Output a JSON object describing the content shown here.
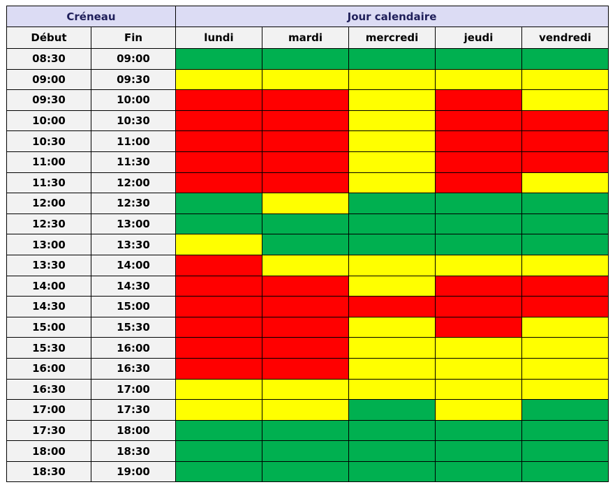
{
  "chart_data": {
    "type": "heatmap",
    "group_headers": {
      "slot": "Créneau",
      "days": "Jour calendaire"
    },
    "slot_headers": {
      "start": "Début",
      "end": "Fin"
    },
    "days": [
      "lundi",
      "mardi",
      "mercredi",
      "jeudi",
      "vendredi"
    ],
    "colors": {
      "G": "#00b050",
      "Y": "#ffff00",
      "R": "#ff0000"
    },
    "rows": [
      {
        "start": "08:30",
        "end": "09:00",
        "cells": [
          "G",
          "G",
          "G",
          "G",
          "G"
        ]
      },
      {
        "start": "09:00",
        "end": "09:30",
        "cells": [
          "Y",
          "Y",
          "Y",
          "Y",
          "Y"
        ]
      },
      {
        "start": "09:30",
        "end": "10:00",
        "cells": [
          "R",
          "R",
          "Y",
          "R",
          "Y"
        ]
      },
      {
        "start": "10:00",
        "end": "10:30",
        "cells": [
          "R",
          "R",
          "Y",
          "R",
          "R"
        ]
      },
      {
        "start": "10:30",
        "end": "11:00",
        "cells": [
          "R",
          "R",
          "Y",
          "R",
          "R"
        ]
      },
      {
        "start": "11:00",
        "end": "11:30",
        "cells": [
          "R",
          "R",
          "Y",
          "R",
          "R"
        ]
      },
      {
        "start": "11:30",
        "end": "12:00",
        "cells": [
          "R",
          "R",
          "Y",
          "R",
          "Y"
        ]
      },
      {
        "start": "12:00",
        "end": "12:30",
        "cells": [
          "G",
          "Y",
          "G",
          "G",
          "G"
        ]
      },
      {
        "start": "12:30",
        "end": "13:00",
        "cells": [
          "G",
          "G",
          "G",
          "G",
          "G"
        ]
      },
      {
        "start": "13:00",
        "end": "13:30",
        "cells": [
          "Y",
          "G",
          "G",
          "G",
          "G"
        ]
      },
      {
        "start": "13:30",
        "end": "14:00",
        "cells": [
          "R",
          "Y",
          "Y",
          "Y",
          "Y"
        ]
      },
      {
        "start": "14:00",
        "end": "14:30",
        "cells": [
          "R",
          "R",
          "Y",
          "R",
          "R"
        ]
      },
      {
        "start": "14:30",
        "end": "15:00",
        "cells": [
          "R",
          "R",
          "R",
          "R",
          "R"
        ]
      },
      {
        "start": "15:00",
        "end": "15:30",
        "cells": [
          "R",
          "R",
          "Y",
          "R",
          "Y"
        ]
      },
      {
        "start": "15:30",
        "end": "16:00",
        "cells": [
          "R",
          "R",
          "Y",
          "Y",
          "Y"
        ]
      },
      {
        "start": "16:00",
        "end": "16:30",
        "cells": [
          "R",
          "R",
          "Y",
          "Y",
          "Y"
        ]
      },
      {
        "start": "16:30",
        "end": "17:00",
        "cells": [
          "Y",
          "Y",
          "Y",
          "Y",
          "Y"
        ]
      },
      {
        "start": "17:00",
        "end": "17:30",
        "cells": [
          "Y",
          "Y",
          "G",
          "Y",
          "G"
        ]
      },
      {
        "start": "17:30",
        "end": "18:00",
        "cells": [
          "G",
          "G",
          "G",
          "G",
          "G"
        ]
      },
      {
        "start": "18:00",
        "end": "18:30",
        "cells": [
          "G",
          "G",
          "G",
          "G",
          "G"
        ]
      },
      {
        "start": "18:30",
        "end": "19:00",
        "cells": [
          "G",
          "G",
          "G",
          "G",
          "G"
        ]
      }
    ]
  }
}
